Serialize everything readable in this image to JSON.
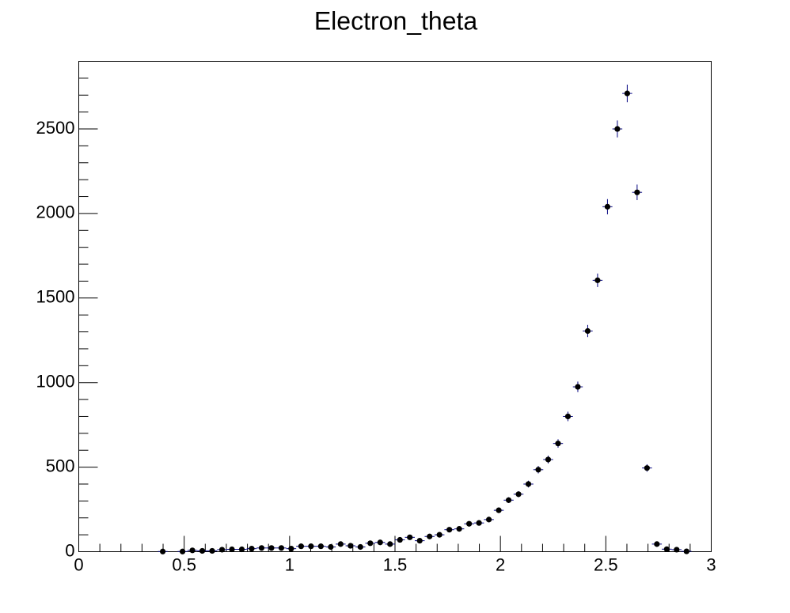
{
  "chart_data": {
    "type": "histogram",
    "title": "Electron_theta",
    "bins": [
      0,
      0.046875,
      0.09375,
      0.140625,
      0.1875,
      0.234375,
      0.28125,
      0.328125,
      0.375,
      0.421875,
      0.46875,
      0.515625,
      0.5625,
      0.609375,
      0.65625,
      0.703125,
      0.75,
      0.796875,
      0.84375,
      0.890625,
      0.9375,
      0.984375,
      1.03125,
      1.078125,
      1.125,
      1.171875,
      1.21875,
      1.265625,
      1.3125,
      1.359375,
      1.40625,
      1.453125,
      1.5,
      1.546875,
      1.59375,
      1.640625,
      1.6875,
      1.734375,
      1.78125,
      1.828125,
      1.875,
      1.921875,
      1.96875,
      2.015625,
      2.0625,
      2.109375,
      2.15625,
      2.203125,
      2.25,
      2.296875,
      2.34375,
      2.390625,
      2.4375,
      2.484375,
      2.53125,
      2.578125,
      2.625,
      2.671875,
      2.71875,
      2.765625,
      2.8125,
      2.859375,
      2.90625,
      2.953125,
      3
    ],
    "values": [
      null,
      null,
      null,
      null,
      null,
      null,
      null,
      null,
      1,
      null,
      1,
      8,
      5,
      5,
      12,
      14,
      14,
      18,
      22,
      22,
      22,
      18,
      32,
      32,
      32,
      28,
      45,
      35,
      28,
      50,
      55,
      45,
      70,
      85,
      65,
      90,
      100,
      130,
      135,
      165,
      170,
      190,
      245,
      305,
      340,
      400,
      485,
      545,
      640,
      800,
      975,
      1305,
      1605,
      2040,
      2500,
      2710,
      2125,
      495,
      45,
      15,
      12,
      2,
      null,
      null
    ],
    "errors": [
      null,
      null,
      null,
      null,
      null,
      null,
      null,
      null,
      1,
      null,
      1,
      3,
      2,
      2,
      3,
      4,
      4,
      4,
      5,
      5,
      5,
      4,
      6,
      6,
      6,
      5,
      7,
      6,
      5,
      7,
      7,
      7,
      8,
      9,
      8,
      9,
      10,
      11,
      12,
      13,
      13,
      14,
      16,
      17,
      18,
      20,
      22,
      23,
      25,
      28,
      31,
      36,
      40,
      45,
      50,
      52,
      46,
      22,
      7,
      4,
      3,
      1,
      null,
      null
    ],
    "marker_color": "#000000",
    "error_color": "#00007f",
    "xlim": [
      0,
      3
    ],
    "xticks": [
      0,
      0.5,
      1,
      1.5,
      2,
      2.5,
      3
    ],
    "ylim": [
      0,
      2900
    ],
    "yticks": [
      0,
      500,
      1000,
      1500,
      2000,
      2500
    ]
  }
}
